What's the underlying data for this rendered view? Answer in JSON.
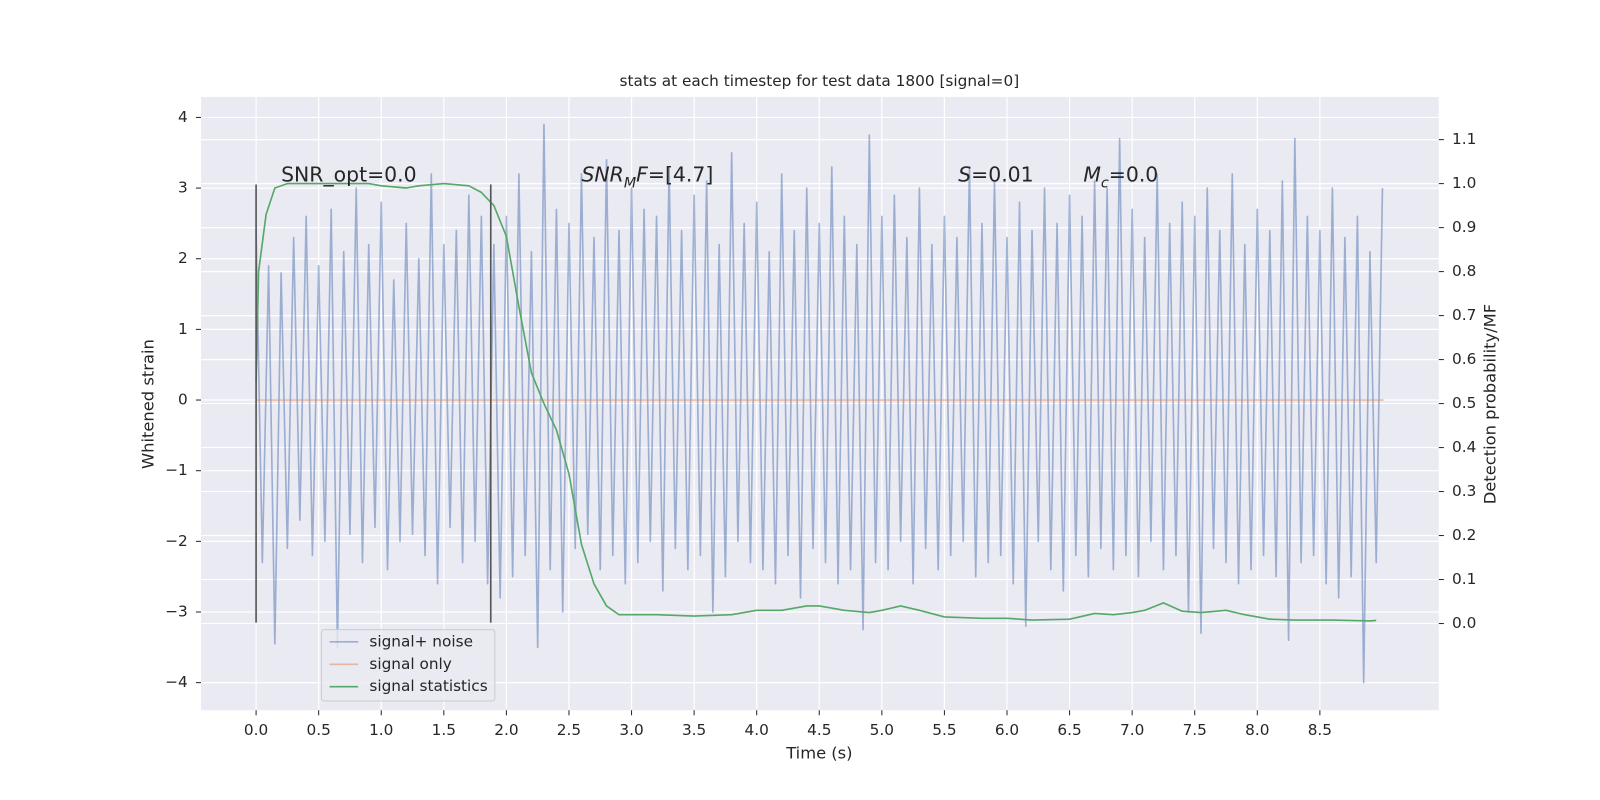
{
  "chart_data": {
    "type": "line",
    "title": "stats at each timestep for test data 1800 [signal=0]",
    "xlabel": "Time (s)",
    "ylabel": "Whitened strain",
    "y2label": "Detection probability/MF",
    "xlim": [
      -0.44,
      9.45
    ],
    "ylim": [
      -4.39,
      4.29
    ],
    "y2lim": [
      -0.197,
      1.197
    ],
    "xticks": [
      {
        "value": 0,
        "label": "0.0"
      },
      0.5,
      {
        "value": 1,
        "label": "1.0"
      },
      1.5,
      {
        "value": 2,
        "label": "2.0"
      },
      2.5,
      {
        "value": 3,
        "label": "3.0"
      },
      3.5,
      {
        "value": 4,
        "label": "4.0"
      },
      4.5,
      {
        "value": 5,
        "label": "5.0"
      },
      5.5,
      {
        "value": 6,
        "label": "6.0"
      },
      6.5,
      {
        "value": 7,
        "label": "7.0"
      },
      7.5,
      {
        "value": 8,
        "label": "8.0"
      },
      8.5
    ],
    "yticks": [
      {
        "value": -4,
        "label": "−4"
      },
      {
        "value": -3,
        "label": "−3"
      },
      {
        "value": -2,
        "label": "−2"
      },
      {
        "value": -1,
        "label": "−1"
      },
      0,
      1,
      2,
      3,
      4
    ],
    "y2ticks": [
      {
        "value": 0,
        "label": "0.0"
      },
      0.1,
      0.2,
      0.3,
      0.4,
      0.5,
      0.6,
      0.7,
      0.8,
      0.9,
      {
        "value": 1,
        "label": "1.0"
      },
      1.1
    ],
    "grid": true,
    "legend_loc": "lower left",
    "series": [
      {
        "name": "signal+ noise",
        "color": "#4c72b0",
        "opacity": 0.5,
        "x": [
          0,
          0.05,
          0.1,
          0.15,
          0.2,
          0.25,
          0.3,
          0.35,
          0.4,
          0.45,
          0.5,
          0.55,
          0.6,
          0.65,
          0.7,
          0.75,
          0.8,
          0.85,
          0.9,
          0.95,
          1,
          1.05,
          1.1,
          1.15,
          1.2,
          1.25,
          1.3,
          1.35,
          1.4,
          1.45,
          1.5,
          1.55,
          1.6,
          1.65,
          1.7,
          1.75,
          1.8,
          1.85,
          1.9,
          1.95,
          2,
          2.05,
          2.1,
          2.15,
          2.2,
          2.25,
          2.3,
          2.35,
          2.4,
          2.45,
          2.5,
          2.55,
          2.6,
          2.65,
          2.7,
          2.75,
          2.8,
          2.85,
          2.9,
          2.95,
          3,
          3.05,
          3.1,
          3.15,
          3.2,
          3.25,
          3.3,
          3.35,
          3.4,
          3.45,
          3.5,
          3.55,
          3.6,
          3.65,
          3.7,
          3.75,
          3.8,
          3.85,
          3.9,
          3.95,
          4,
          4.05,
          4.1,
          4.15,
          4.2,
          4.25,
          4.3,
          4.35,
          4.4,
          4.45,
          4.5,
          4.55,
          4.6,
          4.65,
          4.7,
          4.75,
          4.8,
          4.85,
          4.9,
          4.95,
          5,
          5.05,
          5.1,
          5.15,
          5.2,
          5.25,
          5.3,
          5.35,
          5.4,
          5.45,
          5.5,
          5.55,
          5.6,
          5.65,
          5.7,
          5.75,
          5.8,
          5.85,
          5.9,
          5.95,
          6,
          6.05,
          6.1,
          6.15,
          6.2,
          6.25,
          6.3,
          6.35,
          6.4,
          6.45,
          6.5,
          6.55,
          6.6,
          6.65,
          6.7,
          6.75,
          6.8,
          6.85,
          6.9,
          6.95,
          7,
          7.05,
          7.1,
          7.15,
          7.2,
          7.25,
          7.3,
          7.35,
          7.4,
          7.45,
          7.5,
          7.55,
          7.6,
          7.65,
          7.7,
          7.75,
          7.8,
          7.85,
          7.9,
          7.95,
          8,
          8.05,
          8.1,
          8.15,
          8.2,
          8.25,
          8.3,
          8.35,
          8.4,
          8.45,
          8.5,
          8.55,
          8.6,
          8.65,
          8.7,
          8.75,
          8.8,
          8.85,
          8.9,
          8.95,
          9
        ],
        "values": [
          2.4,
          -2.3,
          1.9,
          -3.45,
          1.8,
          -2.1,
          2.3,
          -1.7,
          2.6,
          -2.2,
          1.9,
          -2.0,
          2.7,
          -3.5,
          2.1,
          -1.9,
          3.0,
          -2.3,
          2.2,
          -1.8,
          2.8,
          -2.4,
          1.7,
          -2.0,
          2.5,
          -1.9,
          2.0,
          -2.2,
          3.2,
          -2.6,
          2.2,
          -1.8,
          2.4,
          -2.3,
          2.9,
          -2.0,
          2.6,
          -2.6,
          2.2,
          -2.8,
          2.6,
          -2.5,
          3.2,
          -2.2,
          2.1,
          -3.5,
          3.9,
          -2.4,
          2.7,
          -3.0,
          2.5,
          -2.1,
          3.2,
          -1.9,
          2.3,
          -2.4,
          3.4,
          -2.2,
          2.4,
          -2.6,
          3.0,
          -2.3,
          2.7,
          -2.0,
          2.6,
          -2.7,
          3.3,
          -2.1,
          2.4,
          -2.4,
          2.9,
          -2.2,
          3.1,
          -3.0,
          2.2,
          -2.5,
          3.5,
          -2.0,
          2.5,
          -2.3,
          2.8,
          -2.4,
          2.1,
          -2.6,
          3.2,
          -2.2,
          2.4,
          -2.8,
          3.0,
          -2.1,
          2.5,
          -2.3,
          3.3,
          -2.6,
          2.6,
          -2.4,
          2.2,
          -3.25,
          3.75,
          -2.3,
          2.6,
          -2.4,
          2.9,
          -2.0,
          2.3,
          -2.6,
          3.0,
          -2.1,
          2.2,
          -2.4,
          2.6,
          -2.2,
          2.3,
          -2.0,
          3.3,
          -2.5,
          2.5,
          -2.3,
          3.1,
          -2.2,
          2.3,
          -2.6,
          2.8,
          -3.2,
          2.4,
          -2.0,
          3.0,
          -2.4,
          2.5,
          -2.7,
          2.9,
          -2.2,
          2.6,
          -2.5,
          3.1,
          -2.1,
          3.0,
          -2.4,
          3.7,
          -2.2,
          2.7,
          -2.5,
          2.3,
          -2.0,
          3.2,
          -2.4,
          2.5,
          -2.2,
          2.8,
          -3.0,
          2.6,
          -3.3,
          3.0,
          -2.1,
          2.4,
          -2.3,
          3.2,
          -2.6,
          2.2,
          -2.4,
          2.7,
          -2.2,
          2.4,
          -2.5,
          3.1,
          -3.4,
          3.7,
          -2.3,
          2.6,
          -2.2,
          2.4,
          -2.6,
          3.0,
          -2.8,
          2.3,
          -2.5,
          2.6,
          -4.0,
          2.1,
          -2.3,
          3.0
        ]
      },
      {
        "name": "signal only",
        "color": "#dd8452",
        "opacity": 0.5,
        "x": [
          0,
          9.01
        ],
        "values": [
          0,
          0
        ]
      },
      {
        "name": "signal statistics",
        "color": "#55a868",
        "axis": "y2",
        "x": [
          0,
          0.02,
          0.08,
          0.15,
          0.25,
          0.5,
          0.9,
          1.0,
          1.2,
          1.3,
          1.5,
          1.7,
          1.8,
          1.9,
          2.0,
          2.1,
          2.2,
          2.3,
          2.4,
          2.5,
          2.6,
          2.7,
          2.8,
          2.9,
          3.0,
          3.2,
          3.5,
          3.8,
          4.0,
          4.2,
          4.4,
          4.5,
          4.7,
          4.9,
          5.0,
          5.15,
          5.3,
          5.5,
          5.8,
          6.0,
          6.2,
          6.5,
          6.7,
          6.85,
          7.0,
          7.1,
          7.25,
          7.4,
          7.55,
          7.75,
          7.9,
          8.1,
          8.3,
          8.6,
          8.9,
          8.95
        ],
        "values": [
          0.55,
          0.8,
          0.93,
          0.99,
          1.0,
          1.0,
          1.0,
          0.995,
          0.99,
          0.995,
          1.0,
          0.995,
          0.98,
          0.95,
          0.88,
          0.72,
          0.57,
          0.5,
          0.44,
          0.34,
          0.18,
          0.09,
          0.04,
          0.02,
          0.02,
          0.02,
          0.017,
          0.02,
          0.03,
          0.03,
          0.04,
          0.04,
          0.03,
          0.025,
          0.03,
          0.04,
          0.03,
          0.015,
          0.012,
          0.012,
          0.008,
          0.01,
          0.023,
          0.02,
          0.025,
          0.03,
          0.047,
          0.028,
          0.025,
          0.03,
          0.02,
          0.01,
          0.008,
          0.008,
          0.006,
          0.007
        ]
      }
    ],
    "vlines": {
      "x": [
        0,
        1.875
      ],
      "ymin": -3.15,
      "ymax": 3.05,
      "color": "#555555"
    },
    "annotations": [
      {
        "x": 0.2,
        "y": 3.18,
        "parts": [
          {
            "text": "SNR_opt=0.0"
          }
        ]
      },
      {
        "x": 2.6,
        "y": 3.18,
        "parts": [
          {
            "text": "SNR",
            "italic": true
          },
          {
            "text": "M",
            "italic": true,
            "sub": true
          },
          {
            "text": "F",
            "italic": true
          },
          {
            "text": "=[4.7]"
          }
        ]
      },
      {
        "x": 5.61,
        "y": 3.18,
        "parts": [
          {
            "text": "S",
            "italic": true
          },
          {
            "text": "=0.01"
          }
        ]
      },
      {
        "x": 6.61,
        "y": 3.18,
        "parts": [
          {
            "text": "M",
            "italic": true
          },
          {
            "text": "c",
            "italic": true,
            "sub": true
          },
          {
            "text": "=0.0"
          }
        ]
      }
    ]
  }
}
